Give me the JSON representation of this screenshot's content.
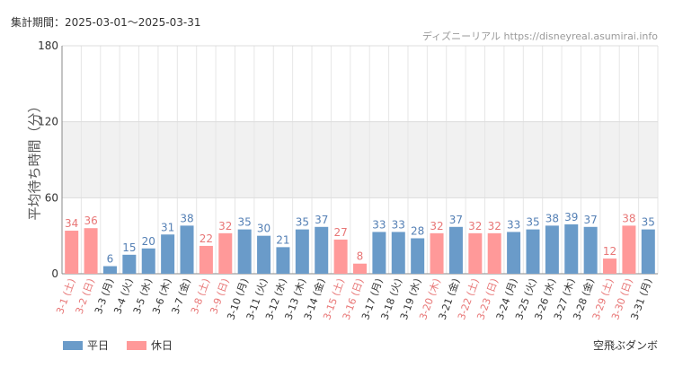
{
  "header": {
    "period": "集計期間：2025-03-01～2025-03-31",
    "source": "ディズニーリアル https://disneyreal.asumirai.info"
  },
  "attraction": "空飛ぶダンボ",
  "colors": {
    "weekday": "#6a9bc9",
    "holiday": "#ff9999",
    "holiday_label": "#e87676",
    "weekday_label": "#5580b5",
    "band": "#f1f1f1"
  },
  "chart_data": {
    "type": "bar",
    "ylabel": "平均待ち時間（分）",
    "ylim": [
      0,
      180
    ],
    "yticks": [
      0,
      60,
      120,
      180
    ],
    "shaded_band": [
      60,
      120
    ],
    "grid": true,
    "legend": [
      {
        "label": "平日",
        "kind": "weekday"
      },
      {
        "label": "休日",
        "kind": "holiday"
      }
    ],
    "categories": [
      "3-1 (土)",
      "3-2 (日)",
      "3-3 (月)",
      "3-4 (火)",
      "3-5 (水)",
      "3-6 (木)",
      "3-7 (金)",
      "3-8 (土)",
      "3-9 (日)",
      "3-10 (月)",
      "3-11 (火)",
      "3-12 (水)",
      "3-13 (木)",
      "3-14 (金)",
      "3-15 (土)",
      "3-16 (日)",
      "3-17 (月)",
      "3-18 (火)",
      "3-19 (水)",
      "3-20 (木)",
      "3-21 (金)",
      "3-22 (土)",
      "3-23 (日)",
      "3-24 (月)",
      "3-25 (火)",
      "3-26 (水)",
      "3-27 (木)",
      "3-28 (金)",
      "3-29 (土)",
      "3-30 (日)",
      "3-31 (月)"
    ],
    "values": [
      34,
      36,
      6,
      15,
      20,
      31,
      38,
      22,
      32,
      35,
      30,
      21,
      35,
      37,
      27,
      8,
      33,
      33,
      28,
      32,
      37,
      32,
      32,
      33,
      35,
      38,
      39,
      37,
      12,
      38,
      35
    ],
    "holiday": [
      true,
      true,
      false,
      false,
      false,
      false,
      false,
      true,
      true,
      false,
      false,
      false,
      false,
      false,
      true,
      true,
      false,
      false,
      false,
      true,
      false,
      true,
      true,
      false,
      false,
      false,
      false,
      false,
      true,
      true,
      false
    ]
  }
}
